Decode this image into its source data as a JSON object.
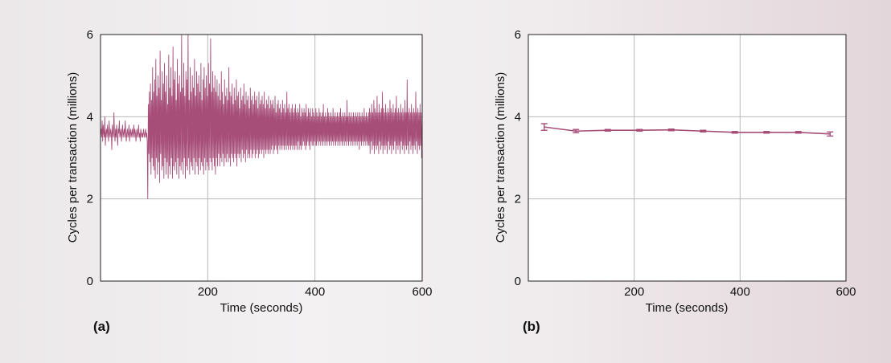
{
  "colors": {
    "series": "#a64d78",
    "grid": "#b9b9b9",
    "axis": "#222222",
    "plot_bg": "#ffffff"
  },
  "chart_data": [
    {
      "panel_label": "(a)",
      "type": "line",
      "xlabel": "Time (seconds)",
      "ylabel": "Cycles per transaction (millions)",
      "xlim": [
        0,
        600
      ],
      "ylim": [
        0,
        6
      ],
      "xticks": [
        200,
        400,
        600
      ],
      "yticks": [
        0,
        2,
        4,
        6
      ],
      "grid": true,
      "error_bars": true,
      "sample_interval_seconds": 1,
      "series": [
        {
          "values": [
            3.6,
            3.7,
            3.5,
            3.9,
            3.4,
            3.8,
            3.6,
            3.5,
            4.0,
            3.3,
            3.6,
            3.7,
            3.5,
            3.8,
            3.6,
            3.4,
            3.9,
            3.6,
            3.5,
            3.7,
            3.6,
            3.2,
            3.8,
            3.6,
            3.5,
            4.1,
            3.6,
            3.4,
            3.7,
            3.5,
            3.8,
            3.6,
            3.3,
            3.7,
            3.6,
            3.9,
            3.5,
            3.6,
            3.7,
            3.4,
            3.6,
            3.8,
            3.5,
            3.6,
            3.7,
            3.5,
            3.9,
            3.6,
            3.4,
            3.6,
            3.7,
            3.5,
            3.6,
            3.8,
            3.4,
            3.6,
            3.7,
            3.5,
            3.6,
            3.7,
            3.5,
            3.6,
            3.8,
            3.5,
            3.7,
            3.6,
            3.4,
            3.6,
            3.7,
            3.5,
            3.6,
            3.8,
            3.5,
            3.6,
            3.4,
            3.7,
            3.6,
            3.5,
            3.6,
            3.5,
            3.7,
            3.6,
            3.5,
            3.6,
            3.7,
            3.5,
            3.6,
            3.4,
            2.0,
            4.3,
            3.1,
            4.6,
            2.9,
            4.8,
            2.6,
            4.4,
            3.0,
            5.2,
            2.8,
            4.6,
            2.7,
            4.9,
            2.5,
            5.4,
            3.0,
            4.5,
            2.6,
            5.0,
            2.9,
            4.7,
            2.4,
            5.6,
            3.1,
            4.4,
            2.7,
            5.1,
            2.8,
            4.8,
            2.5,
            5.3,
            3.0,
            4.6,
            2.6,
            5.0,
            2.9,
            4.3,
            2.5,
            5.5,
            2.8,
            4.7,
            2.6,
            5.2,
            3.0,
            4.5,
            2.5,
            5.7,
            2.8,
            4.9,
            2.7,
            5.1,
            2.9,
            4.4,
            2.6,
            5.4,
            3.0,
            4.8,
            2.5,
            5.0,
            2.8,
            4.6,
            2.7,
            6.0,
            2.9,
            4.7,
            2.6,
            5.3,
            3.0,
            4.5,
            2.5,
            5.1,
            2.8,
            4.9,
            2.7,
            6.0,
            3.0,
            4.4,
            2.6,
            5.2,
            2.9,
            4.6,
            2.8,
            5.0,
            2.7,
            4.7,
            3.0,
            5.4,
            2.6,
            4.5,
            2.9,
            5.1,
            2.8,
            4.8,
            2.6,
            5.0,
            3.0,
            4.6,
            2.7,
            5.3,
            2.9,
            4.4,
            2.8,
            4.9,
            2.6,
            5.2,
            3.0,
            4.7,
            2.7,
            5.0,
            2.9,
            4.5,
            2.8,
            5.3,
            2.7,
            4.8,
            3.0,
            5.9,
            2.9,
            4.6,
            2.7,
            5.1,
            3.0,
            4.7,
            2.8,
            5.0,
            2.6,
            4.6,
            3.0,
            4.9,
            2.8,
            4.5,
            3.1,
            4.8,
            2.8,
            4.4,
            3.0,
            5.1,
            2.9,
            4.6,
            3.1,
            4.3,
            2.8,
            4.9,
            3.0,
            4.5,
            2.9,
            4.7,
            3.1,
            4.4,
            2.9,
            5.2,
            3.0,
            4.6,
            2.8,
            4.5,
            3.1,
            4.8,
            3.0,
            4.3,
            2.9,
            4.7,
            3.1,
            4.4,
            3.0,
            4.9,
            2.8,
            4.5,
            3.1,
            4.6,
            3.0,
            4.2,
            3.1,
            4.7,
            2.9,
            4.4,
            3.2,
            4.5,
            3.0,
            4.8,
            3.1,
            4.3,
            2.9,
            4.6,
            3.2,
            4.4,
            3.0,
            4.5,
            3.1,
            4.2,
            3.0,
            4.7,
            3.2,
            4.4,
            3.0,
            4.5,
            3.1,
            4.3,
            3.2,
            4.6,
            3.0,
            4.4,
            3.1,
            4.5,
            3.2,
            4.2,
            3.0,
            4.6,
            3.1,
            4.3,
            3.2,
            4.4,
            3.1,
            4.5,
            3.2,
            4.3,
            3.0,
            4.6,
            3.2,
            4.2,
            3.1,
            4.4,
            3.2,
            4.3,
            3.1,
            4.5,
            3.2,
            4.2,
            3.1,
            4.4,
            3.2,
            4.3,
            3.3,
            4.4,
            3.1,
            4.2,
            3.2,
            4.5,
            3.3,
            4.1,
            3.2,
            4.3,
            3.1,
            4.4,
            3.3,
            4.2,
            3.2,
            4.3,
            3.3,
            4.1,
            3.2,
            4.4,
            3.3,
            4.2,
            3.2,
            4.3,
            3.3,
            4.1,
            3.2,
            4.6,
            3.3,
            4.2,
            3.2,
            4.3,
            3.3,
            4.1,
            3.2,
            4.2,
            3.3,
            4.3,
            3.2,
            4.1,
            3.3,
            4.2,
            3.2,
            4.3,
            3.3,
            4.1,
            3.2,
            4.2,
            3.4,
            4.1,
            3.2,
            4.3,
            3.3,
            4.0,
            3.2,
            4.2,
            3.3,
            4.1,
            3.4,
            4.2,
            3.3,
            4.1,
            3.2,
            4.3,
            3.3,
            4.0,
            3.4,
            4.2,
            3.3,
            4.1,
            3.2,
            4.2,
            3.4,
            4.0,
            3.3,
            4.2,
            3.3,
            4.1,
            3.4,
            4.0,
            3.3,
            4.2,
            3.3,
            4.1,
            3.4,
            4.0,
            3.3,
            4.2,
            3.4,
            4.1,
            3.3,
            4.0,
            3.4,
            4.1,
            3.3,
            4.3,
            3.4,
            4.0,
            3.3,
            4.1,
            3.4,
            4.0,
            3.3,
            4.2,
            3.4,
            4.1,
            3.3,
            4.0,
            3.4,
            4.1,
            3.3,
            4.0,
            3.4,
            4.2,
            3.3,
            4.0,
            3.4,
            4.1,
            3.3,
            4.0,
            3.4,
            4.1,
            3.3,
            4.0,
            3.4,
            4.1,
            3.3,
            4.2,
            3.4,
            4.0,
            3.3,
            4.1,
            3.4,
            4.0,
            3.3,
            4.1,
            3.4,
            4.0,
            3.3,
            4.4,
            3.4,
            4.0,
            3.3,
            4.1,
            3.4,
            4.0,
            3.3,
            4.1,
            3.4,
            4.0,
            3.3,
            4.1,
            3.4,
            4.0,
            3.3,
            4.1,
            3.4,
            4.0,
            3.3,
            4.1,
            3.4,
            4.0,
            3.2,
            4.1,
            3.4,
            4.0,
            3.3,
            4.1,
            3.4,
            4.0,
            3.3,
            4.2,
            3.4,
            4.0,
            3.3,
            4.1,
            3.4,
            4.0,
            3.3,
            4.1,
            3.3,
            4.2,
            3.1,
            4.1,
            3.4,
            4.3,
            3.2,
            4.1,
            3.3,
            4.4,
            3.1,
            4.2,
            3.3,
            4.1,
            3.2,
            4.5,
            3.3,
            4.1,
            3.1,
            4.3,
            3.4,
            4.1,
            3.2,
            4.2,
            3.3,
            4.6,
            3.1,
            4.2,
            3.3,
            4.1,
            3.2,
            4.3,
            3.3,
            4.1,
            3.1,
            4.2,
            3.4,
            4.1,
            3.2,
            4.4,
            3.3,
            4.2,
            3.1,
            4.1,
            3.3,
            4.3,
            3.2,
            4.1,
            3.4,
            4.2,
            3.1,
            4.5,
            3.3,
            4.1,
            3.2,
            4.2,
            3.3,
            4.1,
            3.1,
            4.3,
            3.4,
            4.1,
            3.2,
            4.2,
            3.3,
            4.1,
            3.1,
            4.4,
            3.3,
            4.1,
            3.2,
            4.9,
            3.3,
            4.1,
            3.1,
            4.2,
            3.4,
            4.1,
            3.2,
            4.3,
            3.3,
            4.1,
            3.1,
            4.2,
            3.3,
            4.1,
            3.2,
            4.6,
            3.4,
            4.1,
            3.1,
            4.2,
            3.3,
            4.1,
            3.2,
            4.3,
            3.3,
            4.1,
            3.0,
            4.0
          ]
        }
      ]
    },
    {
      "panel_label": "(b)",
      "type": "line",
      "xlabel": "Time (seconds)",
      "ylabel": "Cycles per transaction (millions)",
      "xlim": [
        0,
        600
      ],
      "ylim": [
        0,
        6
      ],
      "xticks": [
        200,
        400,
        600
      ],
      "yticks": [
        0,
        2,
        4,
        6
      ],
      "grid": true,
      "error_bars": true,
      "series": [
        {
          "x": [
            30,
            90,
            150,
            210,
            270,
            330,
            390,
            450,
            510,
            570
          ],
          "values": [
            3.75,
            3.65,
            3.67,
            3.67,
            3.68,
            3.65,
            3.62,
            3.62,
            3.62,
            3.58
          ],
          "errors": [
            0.08,
            0.04,
            0.02,
            0.02,
            0.02,
            0.02,
            0.02,
            0.02,
            0.02,
            0.05
          ]
        }
      ]
    }
  ]
}
